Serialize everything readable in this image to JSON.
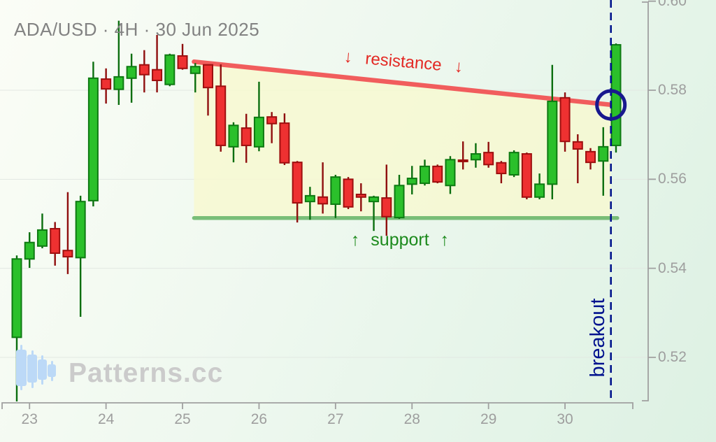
{
  "header": {
    "title": "ADA/USD · 4H · 30 Jun 2025"
  },
  "watermark": {
    "text": "Patterns.cc",
    "icon": "candlestick-logo-icon"
  },
  "annotation_labels": {
    "resistance": "↓ resistance ↓",
    "support": "↑ support ↑",
    "breakout": "breakout"
  },
  "colors": {
    "candle_up_fill": "#2bc02b",
    "candle_up_border": "#0e7a12",
    "candle_down_fill": "#ee3131",
    "candle_down_border": "#9e0f0f",
    "resistance_line": "#f15d5d",
    "support_line": "#6fb96f",
    "pattern_fill": "#f8f9cf",
    "breakout_line": "#00148c",
    "circle_marker": "#18188e",
    "axis": "#a0a0a0",
    "gridline": "#e2e8e2",
    "resistance_text": "#e32823",
    "support_text": "#1d8a1d",
    "breakout_text": "#00128e",
    "title_text": "#828282",
    "watermark_text": "#cbcbcb",
    "watermark_logo": "#bcd9f7"
  },
  "chart_data": {
    "type": "candlestick",
    "symbol": "ADA/USD",
    "timeframe": "4H",
    "date": "30 Jun 2025",
    "title": "ADA/USD · 4H · 30 Jun 2025",
    "pattern": "descending triangle with breakout",
    "y_axis": {
      "ticks": [
        "0.60",
        "0.58",
        "0.56",
        "0.54",
        "0.52"
      ],
      "min": 0.508,
      "max": 0.601
    },
    "x_axis": {
      "ticks": [
        "23",
        "24",
        "25",
        "26",
        "27",
        "28",
        "29",
        "30"
      ],
      "candles_per_tick": 6
    },
    "candles": [
      [
        0.5245,
        0.5429,
        0.5101,
        0.5421
      ],
      [
        0.5421,
        0.5481,
        0.5401,
        0.5458
      ],
      [
        0.545,
        0.5523,
        0.5445,
        0.5486
      ],
      [
        0.5489,
        0.5504,
        0.5406,
        0.5434
      ],
      [
        0.544,
        0.5571,
        0.5387,
        0.5426
      ],
      [
        0.5424,
        0.5563,
        0.5291,
        0.555
      ],
      [
        0.5552,
        0.5864,
        0.5539,
        0.5827
      ],
      [
        0.5825,
        0.5849,
        0.577,
        0.5803
      ],
      [
        0.5802,
        0.5956,
        0.5767,
        0.583
      ],
      [
        0.5827,
        0.5882,
        0.5772,
        0.5853
      ],
      [
        0.5857,
        0.589,
        0.5795,
        0.5835
      ],
      [
        0.5846,
        0.5924,
        0.5795,
        0.5822
      ],
      [
        0.5813,
        0.5882,
        0.5809,
        0.5879
      ],
      [
        0.5877,
        0.5904,
        0.5846,
        0.5849
      ],
      [
        0.5838,
        0.5861,
        0.5795,
        0.5853
      ],
      [
        0.5857,
        0.5858,
        0.5743,
        0.5806
      ],
      [
        0.5809,
        0.5858,
        0.5662,
        0.5676
      ],
      [
        0.5673,
        0.5728,
        0.5638,
        0.5721
      ],
      [
        0.5715,
        0.5747,
        0.5637,
        0.5676
      ],
      [
        0.5673,
        0.5819,
        0.5663,
        0.5739
      ],
      [
        0.574,
        0.5751,
        0.5681,
        0.5725
      ],
      [
        0.5726,
        0.5748,
        0.5632,
        0.5637
      ],
      [
        0.5638,
        0.5641,
        0.5503,
        0.5547
      ],
      [
        0.555,
        0.5583,
        0.5509,
        0.5563
      ],
      [
        0.556,
        0.5638,
        0.5523,
        0.5545
      ],
      [
        0.5544,
        0.561,
        0.5513,
        0.5605
      ],
      [
        0.56,
        0.5605,
        0.5533,
        0.5538
      ],
      [
        0.5566,
        0.5591,
        0.5528,
        0.556
      ],
      [
        0.555,
        0.5563,
        0.5484,
        0.556
      ],
      [
        0.5558,
        0.5633,
        0.5473,
        0.5516
      ],
      [
        0.5514,
        0.561,
        0.5511,
        0.5586
      ],
      [
        0.5589,
        0.563,
        0.5566,
        0.5602
      ],
      [
        0.5591,
        0.5644,
        0.5586,
        0.5629
      ],
      [
        0.5629,
        0.5633,
        0.5591,
        0.5594
      ],
      [
        0.5586,
        0.5652,
        0.5567,
        0.5644
      ],
      [
        0.5643,
        0.5685,
        0.5622,
        0.564
      ],
      [
        0.5644,
        0.5681,
        0.5626,
        0.5657
      ],
      [
        0.566,
        0.5684,
        0.5626,
        0.5633
      ],
      [
        0.5637,
        0.5641,
        0.5591,
        0.5613
      ],
      [
        0.561,
        0.5665,
        0.5605,
        0.566
      ],
      [
        0.5657,
        0.566,
        0.5555,
        0.556
      ],
      [
        0.556,
        0.5613,
        0.5555,
        0.5589
      ],
      [
        0.5589,
        0.5857,
        0.5555,
        0.5775
      ],
      [
        0.5783,
        0.5795,
        0.5662,
        0.5685
      ],
      [
        0.5684,
        0.5701,
        0.5591,
        0.5668
      ],
      [
        0.5662,
        0.567,
        0.5622,
        0.5638
      ],
      [
        0.5641,
        0.5717,
        0.5563,
        0.5673
      ],
      [
        0.5676,
        0.5905,
        0.566,
        0.5902
      ]
    ],
    "annotations": {
      "resistance_line": {
        "from_candle": 14.9,
        "from_price": 0.5864,
        "to_candle": 47.7,
        "to_price": 0.5767
      },
      "support_line": {
        "price": 0.5513,
        "from_candle": 14.9,
        "to_candle": 48.1
      },
      "breakout_vline": {
        "at_candle": 47.6
      },
      "breakout_circle": {
        "at_candle": 47.6,
        "price": 0.5767
      }
    },
    "legend": "none",
    "grid": true
  }
}
